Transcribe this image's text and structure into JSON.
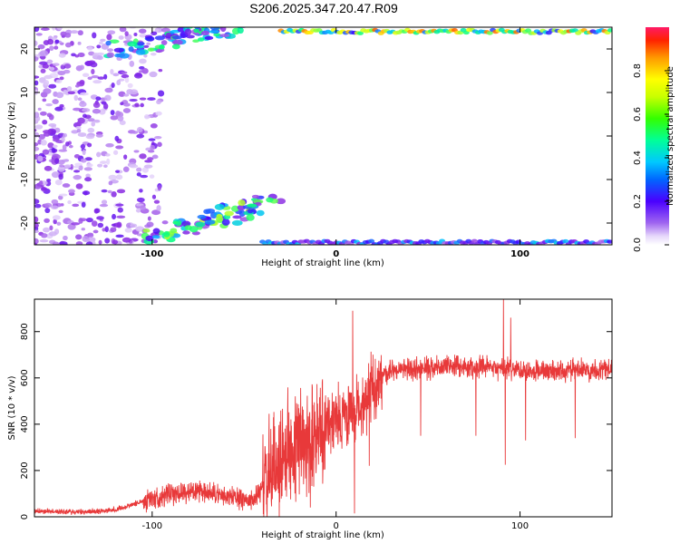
{
  "title": "S206.2025.347.20.47.R09",
  "chart_data": [
    {
      "type": "heatmap",
      "xlabel": "Height of straight line (km)",
      "ylabel": "Frequency (Hz)",
      "xlim": [
        -164,
        150
      ],
      "ylim": [
        -25,
        25
      ],
      "xticks": [
        -100,
        0,
        100
      ],
      "yticks": [
        -20,
        -10,
        0,
        10,
        20
      ],
      "colorbar": {
        "label": "Normalized spectral amplitude",
        "range": [
          0,
          1
        ],
        "ticks": [
          0.0,
          0.2,
          0.4,
          0.6,
          0.8
        ],
        "tick_labels": [
          "0.0",
          "0.2",
          "0.4",
          "0.6",
          "0.8"
        ],
        "colors": [
          "#ffffff",
          "#c9a5f5",
          "#8a2be2",
          "#3f00ff",
          "#00bfff",
          "#00ff7f",
          "#adff2f",
          "#ffff00",
          "#ff8c00",
          "#ff0000",
          "#ff1493"
        ]
      },
      "features": [
        {
          "name": "scattered-noise",
          "x_range": [
            -164,
            -105
          ],
          "y_range": [
            -25,
            25
          ],
          "level": 0.15
        },
        {
          "name": "upper-diagonal-band",
          "x_from": [
            -120,
            20
          ],
          "x_to": [
            -55,
            25
          ],
          "level": 0.35
        },
        {
          "name": "lower-diagonal-band",
          "x_from": [
            -100,
            -23
          ],
          "x_to": [
            -35,
            -15
          ],
          "level": 0.4
        },
        {
          "name": "upper-edge-signal",
          "x_range": [
            -30,
            150
          ],
          "y": 24,
          "level": 0.6
        },
        {
          "name": "lower-edge-signal",
          "x_range": [
            -40,
            150
          ],
          "y": -24.5,
          "level": 0.3
        }
      ]
    },
    {
      "type": "line",
      "xlabel": "Height of straight line (km)",
      "ylabel": "SNR (10 * v/v)",
      "xlim": [
        -164,
        150
      ],
      "ylim": [
        0,
        940
      ],
      "xticks": [
        -100,
        0,
        100
      ],
      "yticks": [
        0,
        200,
        400,
        600,
        800
      ],
      "color": "#e8393a",
      "trend": [
        [
          -164,
          25
        ],
        [
          -140,
          20
        ],
        [
          -120,
          30
        ],
        [
          -100,
          80
        ],
        [
          -80,
          110
        ],
        [
          -60,
          90
        ],
        [
          -45,
          70
        ],
        [
          -38,
          150
        ],
        [
          -30,
          250
        ],
        [
          -20,
          330
        ],
        [
          -10,
          370
        ],
        [
          0,
          420
        ],
        [
          10,
          440
        ],
        [
          20,
          560
        ],
        [
          30,
          630
        ],
        [
          60,
          650
        ],
        [
          90,
          640
        ],
        [
          120,
          630
        ],
        [
          150,
          640
        ]
      ],
      "spikes": [
        {
          "x": 9,
          "y": 890
        },
        {
          "x": 10,
          "y": 15
        },
        {
          "x": 46,
          "y": 350
        },
        {
          "x": 76,
          "y": 350
        },
        {
          "x": 91,
          "y": 940
        },
        {
          "x": 92,
          "y": 225
        },
        {
          "x": 95,
          "y": 860
        },
        {
          "x": 103,
          "y": 330
        },
        {
          "x": 130,
          "y": 340
        },
        {
          "x": 18,
          "y": 220
        },
        {
          "x": -14,
          "y": 40
        }
      ]
    }
  ]
}
